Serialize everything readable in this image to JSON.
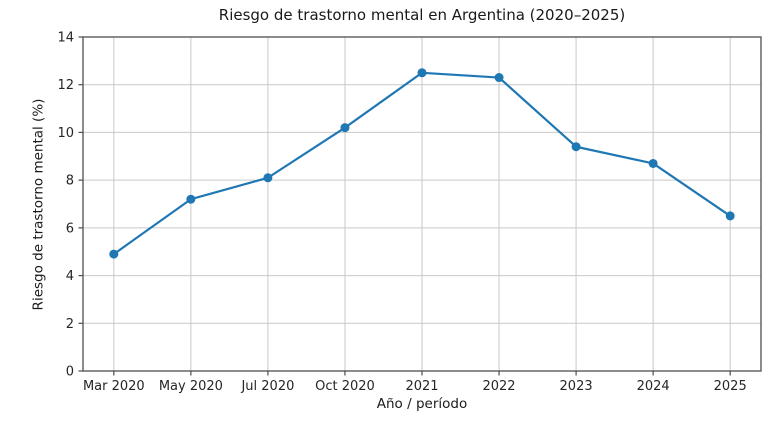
{
  "chart_data": {
    "type": "line",
    "title": "Riesgo de trastorno mental en Argentina (2020–2025)",
    "xlabel": "Año / período",
    "ylabel": "Riesgo de trastorno mental (%)",
    "categories": [
      "Mar 2020",
      "May 2020",
      "Jul 2020",
      "Oct 2020",
      "2021",
      "2022",
      "2023",
      "2024",
      "2025"
    ],
    "values": [
      4.9,
      7.2,
      8.1,
      10.2,
      12.5,
      12.3,
      9.4,
      8.7,
      6.5
    ],
    "ylim": [
      0,
      14
    ],
    "yticks": [
      0,
      2,
      4,
      6,
      8,
      10,
      12,
      14
    ],
    "grid": true,
    "legend": "none",
    "marker": "circle",
    "line_color": "#1f77b4",
    "grid_color": "#c9c9c9",
    "spine_color": "#4d4d4d",
    "tick_text_color": "#262626",
    "background": "#ffffff"
  }
}
